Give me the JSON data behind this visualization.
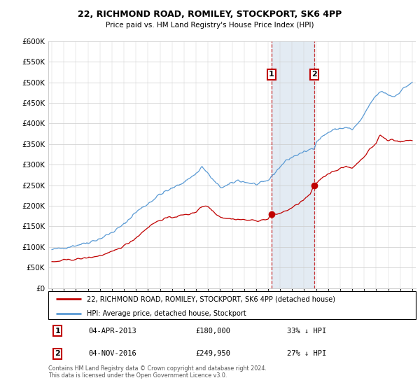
{
  "title1": "22, RICHMOND ROAD, ROMILEY, STOCKPORT, SK6 4PP",
  "title2": "Price paid vs. HM Land Registry's House Price Index (HPI)",
  "hpi_label": "HPI: Average price, detached house, Stockport",
  "price_label": "22, RICHMOND ROAD, ROMILEY, STOCKPORT, SK6 4PP (detached house)",
  "footnote": "Contains HM Land Registry data © Crown copyright and database right 2024.\nThis data is licensed under the Open Government Licence v3.0.",
  "sale1_date": "04-APR-2013",
  "sale1_price": 180000,
  "sale1_pct": "33% ↓ HPI",
  "sale2_date": "04-NOV-2016",
  "sale2_price": 249950,
  "sale2_pct": "27% ↓ HPI",
  "ylim": [
    0,
    600000
  ],
  "yticks": [
    0,
    50000,
    100000,
    150000,
    200000,
    250000,
    300000,
    350000,
    400000,
    450000,
    500000,
    550000,
    600000
  ],
  "hpi_color": "#5b9bd5",
  "price_color": "#c00000",
  "vline_color": "#c00000",
  "shade_color": "#dce6f1",
  "xlim_left": 1994.7,
  "xlim_right": 2025.3,
  "sale1_x": 2013.27,
  "sale1_y": 180000,
  "sale2_x": 2016.84,
  "sale2_y": 249950,
  "shade_x1": 2013.27,
  "shade_x2": 2016.84
}
